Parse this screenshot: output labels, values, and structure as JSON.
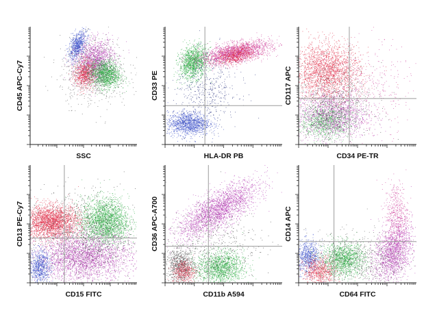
{
  "chart_data": [
    {
      "type": "scatter",
      "xlabel": "SSC",
      "ylabel": "CD45 APC-Cy7",
      "quadrant_gates": false,
      "populations": [
        {
          "color": "#3a4fc8",
          "cx": 0.44,
          "cy": 0.84,
          "sx": 0.04,
          "sy": 0.06,
          "rho": 0.5,
          "n": 700
        },
        {
          "color": "#b53fb4",
          "cx": 0.6,
          "cy": 0.71,
          "sx": 0.09,
          "sy": 0.09,
          "rho": 0.2,
          "n": 1400
        },
        {
          "color": "#e03049",
          "cx": 0.51,
          "cy": 0.6,
          "sx": 0.05,
          "sy": 0.06,
          "rho": 0.1,
          "n": 700
        },
        {
          "color": "#2fae45",
          "cx": 0.7,
          "cy": 0.6,
          "sx": 0.07,
          "sy": 0.06,
          "rho": -0.1,
          "n": 1300
        },
        {
          "color": "#555555",
          "cx": 0.6,
          "cy": 0.62,
          "sx": 0.16,
          "sy": 0.14,
          "rho": 0.0,
          "n": 700
        }
      ]
    },
    {
      "type": "scatter",
      "xlabel": "HLA-DR PB",
      "ylabel": "CD33 PE",
      "quadrant_gates": true,
      "gate_x": 0.34,
      "gate_y": 0.33,
      "populations": [
        {
          "color": "#2fae45",
          "cx": 0.24,
          "cy": 0.7,
          "sx": 0.06,
          "sy": 0.07,
          "rho": 0.2,
          "n": 1300
        },
        {
          "color": "#cc3a98",
          "cx": 0.6,
          "cy": 0.78,
          "sx": 0.15,
          "sy": 0.05,
          "rho": 0.55,
          "n": 1900
        },
        {
          "color": "#e03049",
          "cx": 0.6,
          "cy": 0.76,
          "sx": 0.08,
          "sy": 0.04,
          "rho": 0.4,
          "n": 500
        },
        {
          "color": "#3a4fc8",
          "cx": 0.2,
          "cy": 0.18,
          "sx": 0.09,
          "sy": 0.05,
          "rho": 0.0,
          "n": 1200
        },
        {
          "color": "#1f2a78",
          "cx": 0.35,
          "cy": 0.45,
          "sx": 0.14,
          "sy": 0.16,
          "rho": 0.1,
          "n": 500
        }
      ]
    },
    {
      "type": "scatter",
      "xlabel": "CD34 PE-TR",
      "ylabel": "CD117 APC",
      "quadrant_gates": true,
      "gate_x": 0.43,
      "gate_y": 0.39,
      "populations": [
        {
          "color": "#e03049",
          "cx": 0.24,
          "cy": 0.62,
          "sx": 0.14,
          "sy": 0.12,
          "rho": 0.0,
          "n": 2200
        },
        {
          "color": "#2fae45",
          "cx": 0.22,
          "cy": 0.2,
          "sx": 0.1,
          "sy": 0.07,
          "rho": 0.0,
          "n": 1000
        },
        {
          "color": "#b53fb4",
          "cx": 0.28,
          "cy": 0.25,
          "sx": 0.15,
          "sy": 0.1,
          "rho": 0.0,
          "n": 1400
        },
        {
          "color": "#444444",
          "cx": 0.3,
          "cy": 0.34,
          "sx": 0.17,
          "sy": 0.17,
          "rho": 0.0,
          "n": 700
        },
        {
          "color": "#cc3a98",
          "cx": 0.6,
          "cy": 0.45,
          "sx": 0.18,
          "sy": 0.2,
          "rho": 0.0,
          "n": 350
        }
      ]
    },
    {
      "type": "scatter",
      "xlabel": "CD15 FITC",
      "ylabel": "CD13 PE-Cy7",
      "quadrant_gates": true,
      "gate_x": 0.32,
      "gate_y": 0.38,
      "populations": [
        {
          "color": "#e03049",
          "cx": 0.2,
          "cy": 0.52,
          "sx": 0.13,
          "sy": 0.07,
          "rho": 0.0,
          "n": 2400
        },
        {
          "color": "#2fae45",
          "cx": 0.7,
          "cy": 0.52,
          "sx": 0.11,
          "sy": 0.1,
          "rho": 0.0,
          "n": 2200
        },
        {
          "color": "#b53fb4",
          "cx": 0.5,
          "cy": 0.22,
          "sx": 0.22,
          "sy": 0.1,
          "rho": 0.0,
          "n": 2800
        },
        {
          "color": "#3a4fc8",
          "cx": 0.09,
          "cy": 0.14,
          "sx": 0.05,
          "sy": 0.07,
          "rho": 0.0,
          "n": 700
        },
        {
          "color": "#444444",
          "cx": 0.48,
          "cy": 0.4,
          "sx": 0.25,
          "sy": 0.2,
          "rho": 0.0,
          "n": 1000
        }
      ]
    },
    {
      "type": "scatter",
      "xlabel": "CD11b A594",
      "ylabel": "CD36 APC-A700",
      "quadrant_gates": true,
      "gate_x": 0.37,
      "gate_y": 0.31,
      "populations": [
        {
          "color": "#b53fb4",
          "cx": 0.45,
          "cy": 0.62,
          "sx": 0.17,
          "sy": 0.12,
          "rho": 0.75,
          "n": 2400
        },
        {
          "color": "#5a5a5a",
          "cx": 0.13,
          "cy": 0.15,
          "sx": 0.06,
          "sy": 0.07,
          "rho": 0.0,
          "n": 800
        },
        {
          "color": "#2fae45",
          "cx": 0.47,
          "cy": 0.13,
          "sx": 0.1,
          "sy": 0.07,
          "rho": 0.0,
          "n": 1400
        },
        {
          "color": "#e03049",
          "cx": 0.16,
          "cy": 0.1,
          "sx": 0.05,
          "sy": 0.05,
          "rho": 0.0,
          "n": 400
        },
        {
          "color": "#444444",
          "cx": 0.4,
          "cy": 0.3,
          "sx": 0.2,
          "sy": 0.18,
          "rho": 0.2,
          "n": 500
        }
      ]
    },
    {
      "type": "scatter",
      "xlabel": "CD64 FITC",
      "ylabel": "CD14 APC",
      "quadrant_gates": true,
      "gate_x": 0.3,
      "gate_y": 0.35,
      "populations": [
        {
          "color": "#3a4fc8",
          "cx": 0.08,
          "cy": 0.22,
          "sx": 0.05,
          "sy": 0.07,
          "rho": 0.0,
          "n": 700
        },
        {
          "color": "#e03049",
          "cx": 0.18,
          "cy": 0.1,
          "sx": 0.07,
          "sy": 0.06,
          "rho": 0.0,
          "n": 700
        },
        {
          "color": "#2fae45",
          "cx": 0.38,
          "cy": 0.2,
          "sx": 0.09,
          "sy": 0.07,
          "rho": 0.0,
          "n": 1300
        },
        {
          "color": "#b53fb4",
          "cx": 0.8,
          "cy": 0.26,
          "sx": 0.08,
          "sy": 0.12,
          "rho": 0.3,
          "n": 1600
        },
        {
          "color": "#cc3a98",
          "cx": 0.83,
          "cy": 0.58,
          "sx": 0.05,
          "sy": 0.14,
          "rho": 0.0,
          "n": 500
        },
        {
          "color": "#5a5a5a",
          "cx": 0.5,
          "cy": 0.2,
          "sx": 0.22,
          "sy": 0.12,
          "rho": 0.0,
          "n": 700
        }
      ]
    }
  ]
}
